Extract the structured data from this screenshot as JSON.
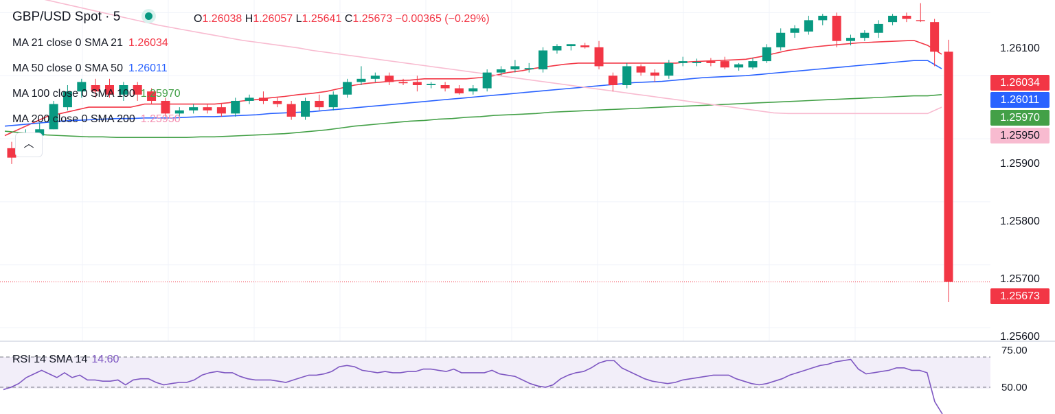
{
  "header": {
    "symbol": "GBP/USD Spot · 5",
    "open_label": "O",
    "open": "1.26038",
    "high_label": "H",
    "high": "1.26057",
    "low_label": "L",
    "low": "1.25641",
    "close_label": "C",
    "close": "1.25673",
    "change": "−0.00365 (−0.29%)"
  },
  "indicators": [
    {
      "label": "MA 21 close 0 SMA 21",
      "value": "1.26034",
      "color": "#f23645"
    },
    {
      "label": "MA 50 close 0 SMA 50",
      "value": "1.26011",
      "color": "#2962ff"
    },
    {
      "label": "MA 100 close 0 SMA 100",
      "value": "1.25970",
      "color": "#43a047"
    },
    {
      "label": "MA 200 close 0 SMA 200",
      "value": "1.25950",
      "color": "#f8bbd0"
    }
  ],
  "price_axis": {
    "ticks": [
      "1.26100",
      "1.25900",
      "1.25800",
      "1.25700",
      "1.25600"
    ]
  },
  "price_tags": [
    {
      "value": "1.26034",
      "color": "#f23645"
    },
    {
      "value": "1.26011",
      "color": "#2962ff"
    },
    {
      "value": "1.25970",
      "color": "#43a047"
    },
    {
      "value": "1.25950",
      "color": "#f8bbd0"
    },
    {
      "value": "1.25673",
      "color": "#f23645"
    }
  ],
  "rsi": {
    "label": "RSI 14 SMA 14",
    "value": "14.60",
    "ticks": [
      "75.00",
      "50.00"
    ],
    "color": "#7e57c2"
  },
  "collapse_button": {
    "icon": "chevron-up-icon",
    "glyph": "︿"
  },
  "colors": {
    "up": "#089981",
    "down": "#f23645"
  },
  "chart_data": {
    "type": "candlestick",
    "symbol": "GBP/USD",
    "ylim": [
      1.2558,
      1.2612
    ],
    "candles": [
      [
        1.25885,
        1.25895,
        1.2586,
        1.2587
      ],
      [
        1.2588,
        1.25915,
        1.25875,
        1.25905
      ],
      [
        1.25905,
        1.25925,
        1.259,
        1.25915
      ],
      [
        1.25915,
        1.2596,
        1.25915,
        1.25955
      ],
      [
        1.2595,
        1.25985,
        1.25945,
        1.25975
      ],
      [
        1.25975,
        1.25995,
        1.25965,
        1.2599
      ],
      [
        1.25985,
        1.25995,
        1.25965,
        1.25975
      ],
      [
        1.25985,
        1.25995,
        1.25965,
        1.2597
      ],
      [
        1.2597,
        1.2599,
        1.2596,
        1.25985
      ],
      [
        1.25985,
        1.2599,
        1.2596,
        1.2597
      ],
      [
        1.25975,
        1.2598,
        1.25955,
        1.2596
      ],
      [
        1.2596,
        1.25965,
        1.25935,
        1.2594
      ],
      [
        1.2594,
        1.2595,
        1.2593,
        1.25945
      ],
      [
        1.25945,
        1.25955,
        1.2594,
        1.2595
      ],
      [
        1.2595,
        1.25955,
        1.2594,
        1.25945
      ],
      [
        1.2595,
        1.25955,
        1.25935,
        1.2594
      ],
      [
        1.2594,
        1.25965,
        1.25935,
        1.2596
      ],
      [
        1.2596,
        1.2597,
        1.25955,
        1.25965
      ],
      [
        1.25965,
        1.25975,
        1.25955,
        1.2596
      ],
      [
        1.2596,
        1.25965,
        1.2595,
        1.25955
      ],
      [
        1.25955,
        1.2596,
        1.2593,
        1.25935
      ],
      [
        1.25935,
        1.25965,
        1.2593,
        1.2596
      ],
      [
        1.2596,
        1.2597,
        1.25945,
        1.2595
      ],
      [
        1.2595,
        1.25975,
        1.25945,
        1.2597
      ],
      [
        1.2597,
        1.25995,
        1.25965,
        1.2599
      ],
      [
        1.2599,
        1.26015,
        1.25985,
        1.25995
      ],
      [
        1.25995,
        1.26005,
        1.2599,
        1.26
      ],
      [
        1.26,
        1.26005,
        1.25985,
        1.2599
      ],
      [
        1.2599,
        1.25995,
        1.25985,
        1.25988
      ],
      [
        1.2599,
        1.26,
        1.25975,
        1.25985
      ],
      [
        1.25985,
        1.2599,
        1.2598,
        1.25987
      ],
      [
        1.25985,
        1.2599,
        1.25975,
        1.2598
      ],
      [
        1.2598,
        1.25985,
        1.2597,
        1.25972
      ],
      [
        1.25975,
        1.25985,
        1.2597,
        1.2598
      ],
      [
        1.2598,
        1.2601,
        1.25975,
        1.26005
      ],
      [
        1.26005,
        1.26015,
        1.26,
        1.2601
      ],
      [
        1.2601,
        1.26025,
        1.26005,
        1.26015
      ],
      [
        1.2601,
        1.2602,
        1.26005,
        1.26012
      ],
      [
        1.2601,
        1.26045,
        1.26005,
        1.2604
      ],
      [
        1.2604,
        1.2605,
        1.26035,
        1.26047
      ],
      [
        1.26047,
        1.2605,
        1.2604,
        1.2605
      ],
      [
        1.26048,
        1.26052,
        1.26043,
        1.26045
      ],
      [
        1.26045,
        1.26055,
        1.2601,
        1.26015
      ],
      [
        1.26,
        1.26005,
        1.25975,
        1.25985
      ],
      [
        1.25985,
        1.2602,
        1.2598,
        1.26015
      ],
      [
        1.26015,
        1.26018,
        1.26,
        1.26005
      ],
      [
        1.26005,
        1.2601,
        1.2599,
        1.26
      ],
      [
        1.26,
        1.26025,
        1.25995,
        1.2602
      ],
      [
        1.2602,
        1.2603,
        1.26015,
        1.26023
      ],
      [
        1.2602,
        1.26027,
        1.26015,
        1.26022
      ],
      [
        1.26023,
        1.26028,
        1.26015,
        1.2602
      ],
      [
        1.26023,
        1.2603,
        1.2601,
        1.26013
      ],
      [
        1.26013,
        1.2602,
        1.26008,
        1.26018
      ],
      [
        1.26013,
        1.26028,
        1.2601,
        1.26023
      ],
      [
        1.26023,
        1.2605,
        1.2602,
        1.26045
      ],
      [
        1.26045,
        1.26075,
        1.2604,
        1.26068
      ],
      [
        1.26068,
        1.2608,
        1.2606,
        1.26075
      ],
      [
        1.2607,
        1.26095,
        1.26065,
        1.26088
      ],
      [
        1.26088,
        1.26098,
        1.2608,
        1.26095
      ],
      [
        1.26095,
        1.261,
        1.26045,
        1.26055
      ],
      [
        1.26055,
        1.26065,
        1.26048,
        1.2606
      ],
      [
        1.2606,
        1.26072,
        1.26055,
        1.26068
      ],
      [
        1.26068,
        1.26088,
        1.2606,
        1.26082
      ],
      [
        1.26085,
        1.26098,
        1.2608,
        1.26095
      ],
      [
        1.26095,
        1.261,
        1.26085,
        1.2609
      ],
      [
        1.26088,
        1.26115,
        1.26085,
        1.26087
      ],
      [
        1.26085,
        1.2609,
        1.26015,
        1.26038
      ],
      [
        1.26038,
        1.26057,
        1.25641,
        1.25673
      ]
    ],
    "series": [
      {
        "type": "line",
        "values": [
          1.25905,
          1.25915,
          1.25925,
          1.25935,
          1.2594,
          1.25945,
          1.2595,
          1.2595,
          1.2595,
          1.2595,
          1.25955,
          1.25955,
          1.25955,
          1.25955,
          1.25955,
          1.25955,
          1.25957,
          1.2596,
          1.25962,
          1.25965,
          1.25967,
          1.2597,
          1.25972,
          1.25975,
          1.2598,
          1.25985,
          1.25988,
          1.2599,
          1.25992,
          1.25993,
          1.25995,
          1.25995,
          1.25995,
          1.25995,
          1.25997,
          1.26,
          1.26005,
          1.26008,
          1.26012,
          1.26015,
          1.26018,
          1.2602,
          1.2602,
          1.2602,
          1.2602,
          1.2602,
          1.2602,
          1.2602,
          1.2602,
          1.26022,
          1.26023,
          1.26024,
          1.26025,
          1.26026,
          1.2603,
          1.26035,
          1.2604,
          1.26043,
          1.26046,
          1.26048,
          1.2605,
          1.26052,
          1.26053,
          1.26054,
          1.26055,
          1.26056,
          1.26048,
          1.26034
        ]
      },
      {
        "type": "line",
        "values": [
          1.2592,
          1.25922,
          1.25924,
          1.25926,
          1.25928,
          1.25929,
          1.2593,
          1.25931,
          1.25932,
          1.25932,
          1.25933,
          1.25933,
          1.25933,
          1.25934,
          1.25935,
          1.25935,
          1.25936,
          1.25937,
          1.25938,
          1.2594,
          1.25941,
          1.25942,
          1.25943,
          1.25945,
          1.25947,
          1.25949,
          1.25951,
          1.25953,
          1.25955,
          1.25957,
          1.25959,
          1.25961,
          1.25963,
          1.25965,
          1.25967,
          1.25969,
          1.25971,
          1.25973,
          1.25975,
          1.25977,
          1.25979,
          1.25981,
          1.25983,
          1.25985,
          1.25987,
          1.25989,
          1.2599,
          1.25991,
          1.25993,
          1.25995,
          1.25997,
          1.25998,
          1.25999,
          1.26,
          1.26002,
          1.26004,
          1.26006,
          1.26008,
          1.2601,
          1.26012,
          1.26014,
          1.26016,
          1.26018,
          1.2602,
          1.26022,
          1.26024,
          1.26024,
          1.26011
        ]
      },
      {
        "type": "line",
        "values": [
          1.25912,
          1.2591,
          1.25908,
          1.25906,
          1.25905,
          1.25904,
          1.25903,
          1.25903,
          1.25902,
          1.25902,
          1.25902,
          1.25902,
          1.25902,
          1.25902,
          1.25903,
          1.25903,
          1.25904,
          1.25905,
          1.25906,
          1.25907,
          1.25908,
          1.2591,
          1.25912,
          1.25914,
          1.25917,
          1.2592,
          1.25922,
          1.25924,
          1.25926,
          1.25928,
          1.25929,
          1.25931,
          1.25932,
          1.25934,
          1.25935,
          1.25937,
          1.25938,
          1.25939,
          1.2594,
          1.25942,
          1.25943,
          1.25944,
          1.25945,
          1.25946,
          1.25947,
          1.25948,
          1.25949,
          1.2595,
          1.25951,
          1.25952,
          1.25953,
          1.25954,
          1.25955,
          1.25956,
          1.25957,
          1.25958,
          1.25959,
          1.2596,
          1.25961,
          1.25962,
          1.25963,
          1.25964,
          1.25965,
          1.25966,
          1.25967,
          1.25968,
          1.25968,
          1.2597
        ]
      },
      {
        "type": "line",
        "values": [
          1.26135,
          1.2613,
          1.26125,
          1.2612,
          1.26115,
          1.2611,
          1.26105,
          1.261,
          1.26095,
          1.2609,
          1.26085,
          1.2608,
          1.26076,
          1.26072,
          1.26068,
          1.26064,
          1.2606,
          1.26056,
          1.26053,
          1.2605,
          1.26047,
          1.26044,
          1.2604,
          1.26037,
          1.26034,
          1.26031,
          1.26028,
          1.26025,
          1.26022,
          1.26019,
          1.26016,
          1.26013,
          1.2601,
          1.26007,
          1.26004,
          1.26001,
          1.25998,
          1.25995,
          1.25992,
          1.25989,
          1.25986,
          1.25983,
          1.2598,
          1.25977,
          1.25974,
          1.25971,
          1.25968,
          1.25965,
          1.25962,
          1.25959,
          1.25956,
          1.25953,
          1.2595,
          1.25947,
          1.25944,
          1.25941,
          1.2594,
          1.2594,
          1.2594,
          1.2594,
          1.2594,
          1.2594,
          1.2594,
          1.2594,
          1.2594,
          1.2594,
          1.2594,
          1.2595
        ]
      }
    ],
    "rsi_values": [
      48,
      50,
      53,
      58,
      61,
      64,
      61,
      58,
      62,
      58,
      60,
      56,
      56,
      55,
      55,
      56,
      52,
      56,
      57,
      57,
      54,
      52,
      53,
      54,
      54,
      56,
      60,
      62,
      63,
      62,
      62,
      59,
      57,
      56,
      56,
      56,
      55,
      54,
      56,
      58,
      60,
      60,
      61,
      63,
      67,
      68,
      67,
      64,
      63,
      62,
      63,
      62,
      62,
      63,
      63,
      65,
      65,
      64,
      63,
      65,
      62,
      62,
      62,
      62,
      64,
      61,
      60,
      59,
      56,
      53,
      51,
      50,
      52,
      57,
      60,
      62,
      63,
      66,
      70,
      72,
      72,
      66,
      63,
      60,
      57,
      55,
      54,
      53,
      54,
      56,
      57,
      58,
      59,
      60,
      60,
      60,
      57,
      55,
      53,
      52,
      53,
      55,
      57,
      60,
      62,
      64,
      66,
      68,
      69,
      71,
      72,
      73,
      65,
      61,
      62,
      63,
      64,
      66,
      66,
      64,
      64,
      62,
      38,
      14.6
    ],
    "rsi_ylim": [
      40,
      80
    ]
  }
}
